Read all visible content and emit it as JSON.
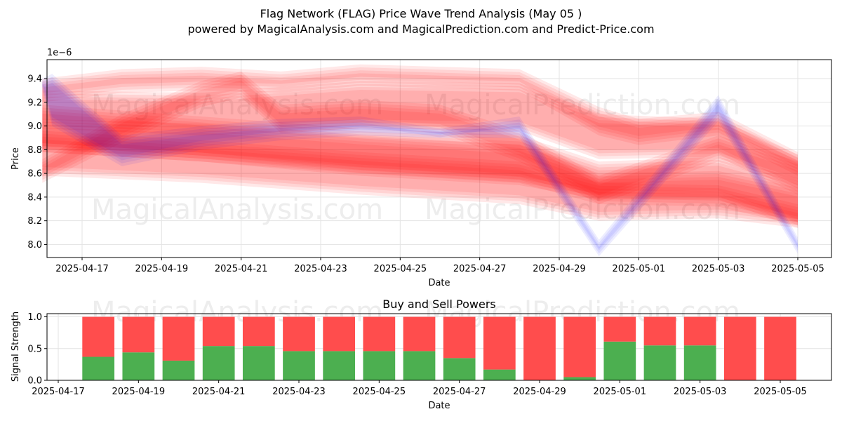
{
  "title": "Flag Network (FLAG) Price Wave Trend Analysis (May 05 )",
  "subtitle": "powered by MagicalAnalysis.com and MagicalPrediction.com and Predict-Price.com",
  "watermarks": [
    "MagicalAnalysis.com",
    "MagicalPrediction.com"
  ],
  "colors": {
    "red": "#ff0000",
    "blue": "#0000ff",
    "buy": "#4caf50",
    "sell": "#ff4d4d"
  },
  "chart_data": [
    {
      "type": "area",
      "title": "",
      "xlabel": "Date",
      "ylabel": "Price",
      "y_scale_label": "1e−6",
      "ylim": [
        7.89,
        9.56
      ],
      "yticks": [
        "8.0",
        "8.2",
        "8.4",
        "8.6",
        "8.8",
        "9.0",
        "9.2",
        "9.4"
      ],
      "yticks_values": [
        8.0,
        8.2,
        8.4,
        8.6,
        8.8,
        9.0,
        9.2,
        9.4
      ],
      "xticks": [
        "2025-04-17",
        "2025-04-19",
        "2025-04-21",
        "2025-04-23",
        "2025-04-25",
        "2025-04-27",
        "2025-04-29",
        "2025-05-01",
        "2025-05-03",
        "2025-05-05"
      ],
      "grid": true,
      "series": [
        {
          "color": "red",
          "x": [
            "2025-04-16",
            "2025-04-20",
            "2025-04-24",
            "2025-04-28",
            "2025-04-30",
            "2025-05-03",
            "2025-05-05"
          ],
          "upper": [
            9.3,
            9.28,
            9.38,
            9.36,
            9.1,
            9.06,
            8.76
          ],
          "lower": [
            8.98,
            8.92,
            8.98,
            8.96,
            8.72,
            8.74,
            8.42
          ]
        },
        {
          "color": "red",
          "x": [
            "2025-04-16",
            "2025-04-20",
            "2025-04-24",
            "2025-04-28",
            "2025-04-30",
            "2025-05-03",
            "2025-05-05"
          ],
          "upper": [
            9.18,
            9.08,
            8.98,
            8.92,
            8.7,
            8.74,
            8.56
          ],
          "lower": [
            8.78,
            8.7,
            8.58,
            8.5,
            8.38,
            8.38,
            8.14
          ]
        },
        {
          "color": "red",
          "x": [
            "2025-04-16",
            "2025-04-20",
            "2025-04-24",
            "2025-04-28",
            "2025-04-30",
            "2025-05-03",
            "2025-05-05"
          ],
          "upper": [
            8.96,
            8.88,
            8.78,
            8.7,
            8.52,
            8.5,
            8.34
          ]
        },
        {
          "color": "red",
          "x": [
            "2025-04-16",
            "2025-04-20",
            "2025-04-24",
            "2025-04-28",
            "2025-04-30",
            "2025-05-03",
            "2025-05-05"
          ],
          "upper": [
            9.06,
            9.02,
            8.92,
            8.84,
            8.6,
            8.62,
            8.48
          ],
          "lower": [
            8.58,
            8.52,
            8.42,
            8.34,
            8.2,
            8.22,
            8.14
          ]
        },
        {
          "color": "red",
          "x": [
            "2025-04-16",
            "2025-04-18",
            "2025-04-20",
            "2025-04-22",
            "2025-04-24",
            "2025-04-26",
            "2025-04-28",
            "2025-04-30",
            "2025-05-01",
            "2025-05-03",
            "2025-05-05"
          ],
          "upper": [
            9.4,
            9.48,
            9.5,
            9.46,
            9.52,
            9.5,
            9.48,
            9.16,
            9.06,
            9.12,
            8.78
          ],
          "lower": [
            9.2,
            9.28,
            9.3,
            9.28,
            9.34,
            9.32,
            9.3,
            8.92,
            8.84,
            8.92,
            8.58
          ]
        },
        {
          "color": "red",
          "x": [
            "2025-04-16",
            "2025-04-18",
            "2025-04-20",
            "2025-04-21",
            "2025-04-22",
            "2025-04-24",
            "2025-04-26",
            "2025-04-28",
            "2025-04-30",
            "2025-05-03",
            "2025-05-05"
          ],
          "upper": [
            8.72,
            9.1,
            9.38,
            9.46,
            9.18,
            9.22,
            9.18,
            8.96,
            8.58,
            8.92,
            8.7
          ],
          "lower": [
            8.52,
            8.86,
            9.16,
            9.24,
            8.94,
            8.98,
            8.94,
            8.7,
            8.34,
            8.7,
            8.48
          ]
        },
        {
          "color": "blue",
          "x": [
            "2025-04-16",
            "2025-04-16",
            "2025-04-18",
            "2025-04-20",
            "2025-04-22",
            "2025-04-24",
            "2025-04-26",
            "2025-04-28",
            "2025-04-30",
            "2025-05-03",
            "2025-05-05"
          ],
          "upper": [
            9.4,
            9.44,
            8.92,
            9.0,
            9.06,
            9.08,
            8.98,
            9.08,
            8.04,
            9.26,
            8.06
          ],
          "lower": [
            9.3,
            9.0,
            8.66,
            8.8,
            8.88,
            8.92,
            8.9,
            8.9,
            7.9,
            9.04,
            7.92
          ]
        }
      ]
    },
    {
      "type": "bar",
      "title": "Buy and Sell Powers",
      "xlabel": "Date",
      "ylabel": "Signal Strength",
      "ylim": [
        0,
        1.05
      ],
      "yticks": [
        "0.0",
        "0.5",
        "1.0"
      ],
      "yticks_values": [
        0.0,
        0.5,
        1.0
      ],
      "xticks": [
        "2025-04-17",
        "2025-04-19",
        "2025-04-21",
        "2025-04-23",
        "2025-04-25",
        "2025-04-27",
        "2025-04-29",
        "2025-05-01",
        "2025-05-03",
        "2025-05-05"
      ],
      "grid": true,
      "categories": [
        "2025-04-18",
        "2025-04-19",
        "2025-04-20",
        "2025-04-21",
        "2025-04-22",
        "2025-04-23",
        "2025-04-24",
        "2025-04-25",
        "2025-04-26",
        "2025-04-27",
        "2025-04-28",
        "2025-04-29",
        "2025-04-30",
        "2025-05-01",
        "2025-05-02",
        "2025-05-03",
        "2025-05-04",
        "2025-05-05"
      ],
      "series": [
        {
          "name": "Buy",
          "values": [
            0.37,
            0.44,
            0.31,
            0.54,
            0.54,
            0.46,
            0.46,
            0.46,
            0.46,
            0.35,
            0.17,
            0.0,
            0.05,
            0.61,
            0.55,
            0.55,
            0.0,
            0.0
          ]
        },
        {
          "name": "Sell",
          "values": [
            0.63,
            0.56,
            0.69,
            0.46,
            0.46,
            0.54,
            0.54,
            0.54,
            0.54,
            0.65,
            0.83,
            1.0,
            0.95,
            0.39,
            0.45,
            0.45,
            1.0,
            1.0
          ]
        }
      ]
    }
  ]
}
